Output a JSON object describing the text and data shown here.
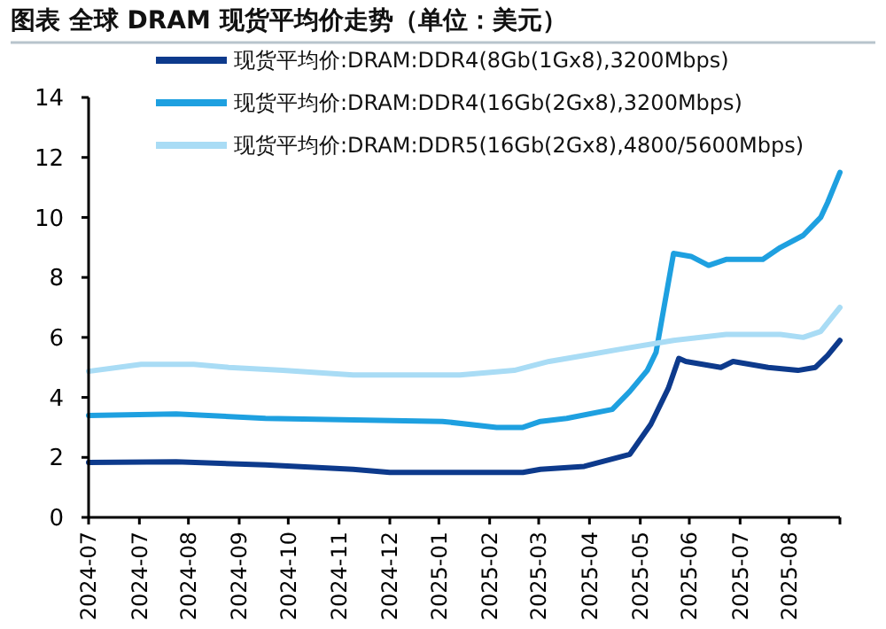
{
  "chart_data": {
    "type": "line",
    "title": "图表  全球 DRAM 现货平均价走势（单位：美元）",
    "xlim": [
      "2024-07-01",
      "2025-09-03"
    ],
    "xticks": [
      {
        "value": "2024-07-01",
        "label": "2024-07"
      },
      {
        "value": "2024-07-30",
        "label": "2024-07"
      },
      {
        "value": "2024-08-27",
        "label": "2024-08"
      },
      {
        "value": "2024-09-25",
        "label": "2024-09"
      },
      {
        "value": "2024-10-23",
        "label": "2024-10"
      },
      {
        "value": "2024-11-21",
        "label": "2024-11"
      },
      {
        "value": "2024-12-20",
        "label": "2024-12"
      },
      {
        "value": "2025-01-17",
        "label": "2025-01"
      },
      {
        "value": "2025-02-15",
        "label": "2025-02"
      },
      {
        "value": "2025-03-15",
        "label": "2025-03"
      },
      {
        "value": "2025-04-13",
        "label": "2025-04"
      },
      {
        "value": "2025-05-12",
        "label": "2025-05"
      },
      {
        "value": "2025-06-09",
        "label": "2025-06"
      },
      {
        "value": "2025-07-08",
        "label": "2025-07"
      },
      {
        "value": "2025-08-05",
        "label": "2025-08"
      },
      {
        "value": "2025-09-03",
        "label": null
      }
    ],
    "ylim": [
      0,
      14
    ],
    "yticks": [
      0,
      2,
      4,
      6,
      8,
      10,
      12,
      14
    ],
    "grid": false,
    "legend": "top left",
    "line_style": "solid",
    "series": [
      {
        "name": "现货平均价:DRAM:DDR4(8Gb(1Gx8),3200Mbps)",
        "color": "#0d3a8c",
        "x": [
          "2024-07-01",
          "2024-08-20",
          "2024-10-10",
          "2024-11-29",
          "2024-12-20",
          "2025-01-29",
          "2025-03-06",
          "2025-03-16",
          "2025-04-10",
          "2025-05-06",
          "2025-05-18",
          "2025-05-28",
          "2025-06-03",
          "2025-06-07",
          "2025-06-27",
          "2025-07-04",
          "2025-07-24",
          "2025-08-10",
          "2025-08-20",
          "2025-08-27",
          "2025-09-03"
        ],
        "values": [
          1.83,
          1.85,
          1.75,
          1.6,
          1.5,
          1.5,
          1.5,
          1.6,
          1.7,
          2.1,
          3.1,
          4.3,
          5.3,
          5.2,
          5.0,
          5.2,
          5.0,
          4.9,
          5.0,
          5.4,
          5.9
        ]
      },
      {
        "name": "现货平均价:DRAM:DDR4(16Gb(2Gx8),3200Mbps)",
        "color": "#1ea0e0",
        "x": [
          "2024-07-01",
          "2024-08-20",
          "2024-10-10",
          "2025-01-19",
          "2025-02-19",
          "2025-03-06",
          "2025-03-16",
          "2025-03-31",
          "2025-04-26",
          "2025-05-06",
          "2025-05-16",
          "2025-05-21",
          "2025-05-31",
          "2025-06-10",
          "2025-06-20",
          "2025-06-30",
          "2025-07-21",
          "2025-07-31",
          "2025-08-13",
          "2025-08-23",
          "2025-08-27",
          "2025-09-03"
        ],
        "values": [
          3.4,
          3.45,
          3.3,
          3.2,
          3.0,
          3.0,
          3.2,
          3.3,
          3.6,
          4.2,
          4.9,
          5.5,
          8.8,
          8.7,
          8.4,
          8.6,
          8.6,
          9.0,
          9.4,
          10.0,
          10.5,
          11.5
        ]
      },
      {
        "name": "现货平均价:DRAM:DDR5(16Gb(2Gx8),4800/5600Mbps)",
        "color": "#a9dcf5",
        "x": [
          "2024-07-01",
          "2024-07-31",
          "2024-08-30",
          "2024-09-19",
          "2024-10-20",
          "2024-11-29",
          "2025-01-29",
          "2025-03-01",
          "2025-03-21",
          "2025-04-10",
          "2025-04-30",
          "2025-05-31",
          "2025-06-30",
          "2025-07-31",
          "2025-08-13",
          "2025-08-23",
          "2025-09-03"
        ],
        "values": [
          4.87,
          5.1,
          5.1,
          5.0,
          4.9,
          4.75,
          4.75,
          4.9,
          5.2,
          5.4,
          5.6,
          5.9,
          6.1,
          6.1,
          6.0,
          6.2,
          7.0
        ]
      }
    ]
  }
}
